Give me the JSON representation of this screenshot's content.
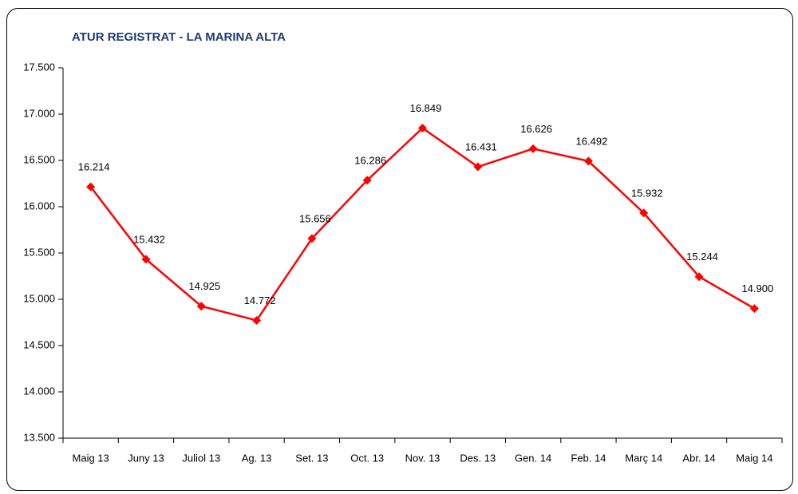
{
  "chart_data": {
    "type": "line",
    "title": "ATUR REGISTRAT - LA MARINA ALTA",
    "categories": [
      "Maig 13",
      "Juny 13",
      "Juliol 13",
      "Ag. 13",
      "Set. 13",
      "Oct. 13",
      "Nov. 13",
      "Des. 13",
      "Gen. 14",
      "Feb. 14",
      "Març 14",
      "Abr. 14",
      "Maig 14"
    ],
    "series": [
      {
        "name": "Atur registrat",
        "color": "#ff0000",
        "values": [
          16214,
          15432,
          14925,
          14772,
          15656,
          16286,
          16849,
          16431,
          16626,
          16492,
          15932,
          15244,
          14900
        ],
        "value_labels": [
          "16.214",
          "15.432",
          "14.925",
          "14.772",
          "15.656",
          "16.286",
          "16.849",
          "16.431",
          "16.626",
          "16.492",
          "15.932",
          "15.244",
          "14.900"
        ]
      }
    ],
    "ylim": [
      13500,
      17500
    ],
    "yticks": [
      {
        "value": 13500,
        "label": "13.500"
      },
      {
        "value": 14000,
        "label": "14.000"
      },
      {
        "value": 14500,
        "label": "14.500"
      },
      {
        "value": 15000,
        "label": "15.000"
      },
      {
        "value": 15500,
        "label": "15.500"
      },
      {
        "value": 16000,
        "label": "16.000"
      },
      {
        "value": 16500,
        "label": "16.500"
      },
      {
        "value": 17000,
        "label": "17.000"
      },
      {
        "value": 17500,
        "label": "17.500"
      }
    ],
    "grid": false
  }
}
